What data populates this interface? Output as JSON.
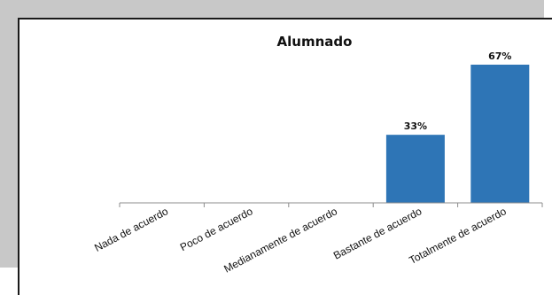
{
  "chart_data": {
    "type": "bar",
    "title": "Alumnado",
    "categories": [
      "Nada de acuerdo",
      "Poco de acuerdo",
      "Medianamente de acuerdo",
      "Bastante de acuerdo",
      "Totalmente de acuerdo"
    ],
    "values": [
      0,
      0,
      0,
      33,
      67
    ],
    "data_labels": [
      "",
      "",
      "",
      "33%",
      "67%"
    ],
    "ylim": [
      0,
      67
    ],
    "grid": false,
    "bar_color": "#2e75b6"
  }
}
